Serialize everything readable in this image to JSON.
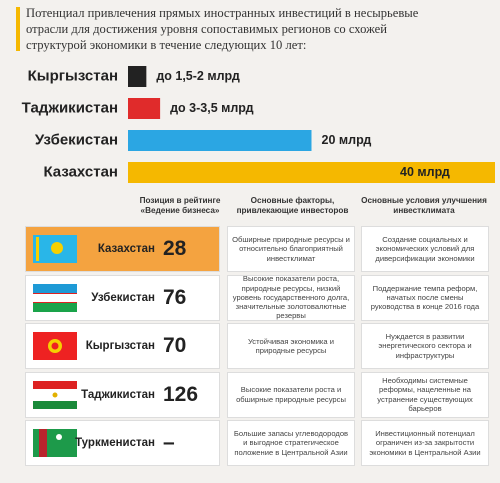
{
  "title": "Потенциал привлечения прямых иностранных инвестиций в несырьевые отрасли для достижения уровня сопоставимых регионов со схожей структурой экономики в течение следующих 10 лет:",
  "chart_data": {
    "type": "bar",
    "orientation": "horizontal",
    "categories": [
      "Кыргызстан",
      "Таджикистан",
      "Узбекистан",
      "Казахстан"
    ],
    "values": [
      2,
      3.5,
      20,
      40
    ],
    "value_labels": [
      "до 1,5-2 млрд",
      "до 3-3,5 млрд",
      "20 млрд",
      "40 млрд"
    ],
    "colors": [
      "#222222",
      "#e02b2b",
      "#2ba6e3",
      "#f5b800"
    ]
  },
  "table": {
    "header": [
      "Позиция в рейтинге «Ведение бизнеса»",
      "Основные факторы, привлекающие инвесторов",
      "Основные условия улучшения инвестклимата"
    ],
    "rows": [
      [
        "Казахстан",
        "28",
        "Обширные природные ресурсы и относительно благоприятный инвестклимат",
        "Создание социальных и экономических условий для диверсификации экономики"
      ],
      [
        "Узбекистан",
        "76",
        "Высокие показатели роста, природные ресурсы, низкий уровень государственного долга, значительные золотовалютные резервы",
        "Поддержание темпа реформ, начатых после смены руководства в конце 2016 года"
      ],
      [
        "Кыргызстан",
        "70",
        "Устойчивая экономика и природные ресурсы",
        "Нуждается в развитии энергетического сектора и инфраструктуры"
      ],
      [
        "Таджикистан",
        "126",
        "Высокие показатели роста и обширные природные ресурсы",
        "Необходимы системные реформы, нацеленные на устранение существующих барьеров"
      ],
      [
        "Туркменистан",
        "–",
        "Большие запасы углеводородов и выгодное стратегическое положение в Центральной Азии",
        "Инвестиционный потенциал ограничен из-за закрытости экономики в Центральной Азии"
      ]
    ]
  }
}
